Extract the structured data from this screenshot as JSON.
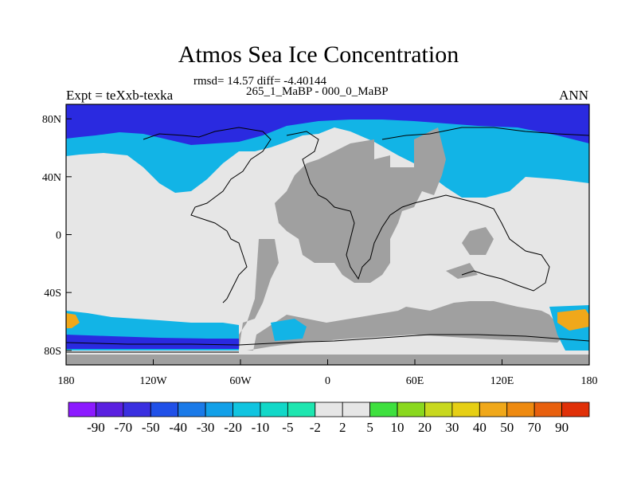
{
  "title": "Atmos Sea Ice Concentration",
  "stats_line1": "rmsd= 14.57 diff= -4.40144",
  "stats_line2": "265_1_MaBP - 000_0_MaBP",
  "left_label": "Expt = teXxb-texka",
  "right_label": "ANN",
  "x_ticks": [
    {
      "label": "180",
      "lon": -180
    },
    {
      "label": "120W",
      "lon": -120
    },
    {
      "label": "60W",
      "lon": -60
    },
    {
      "label": "0",
      "lon": 0
    },
    {
      "label": "60E",
      "lon": 60
    },
    {
      "label": "120E",
      "lon": 120
    },
    {
      "label": "180",
      "lon": 180
    }
  ],
  "y_ticks": [
    {
      "label": "80N",
      "lat": 80
    },
    {
      "label": "40N",
      "lat": 40
    },
    {
      "label": "0",
      "lat": 0
    },
    {
      "label": "40S",
      "lat": -40
    },
    {
      "label": "80S",
      "lat": -80
    }
  ],
  "lat_range": [
    -90,
    90
  ],
  "lon_range": [
    -180,
    180
  ],
  "colorbar": {
    "labels": [
      "-90",
      "-70",
      "-50",
      "-40",
      "-30",
      "-20",
      "-10",
      "-5",
      "-2",
      "2",
      "5",
      "10",
      "20",
      "30",
      "40",
      "50",
      "70",
      "90"
    ],
    "colors": [
      "#8c1aff",
      "#5a20e0",
      "#3a2fe0",
      "#2050e8",
      "#1a7ae8",
      "#12a0e8",
      "#10c4e0",
      "#12d8c8",
      "#1ee6b0",
      "#e6e6e6",
      "#3ee03e",
      "#8ad81e",
      "#c8d81e",
      "#e6cf14",
      "#f0a81a",
      "#ee8a10",
      "#e8600e",
      "#e03008"
    ]
  },
  "regions": {
    "land_color": "#e6e6e6",
    "missing_color": "#a0a0a0",
    "ocean_high_color": "#2a2ae0",
    "ocean_mid_color": "#12b4e6",
    "ocean_low_color": "#12d8c8"
  }
}
